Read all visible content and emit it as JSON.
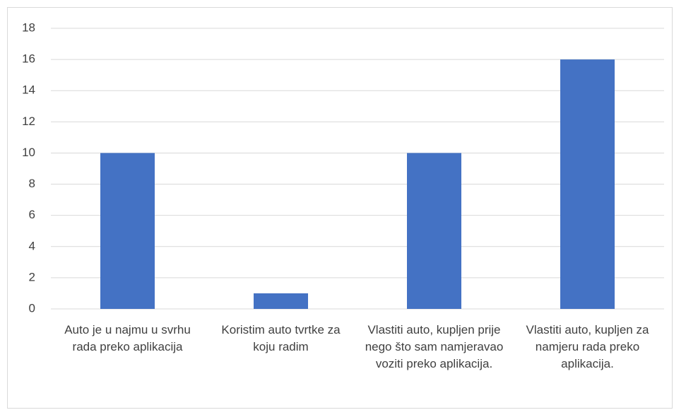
{
  "chart_data": {
    "type": "bar",
    "categories": [
      "Auto je u najmu u svrhu rada preko aplikacija",
      "Koristim auto tvrtke za koju radim",
      "Vlastiti auto, kupljen prije nego što sam namjeravao voziti preko aplikacija.",
      "Vlastiti auto, kupljen za namjeru rada preko aplikacija."
    ],
    "values": [
      10,
      1,
      10,
      16
    ],
    "color": "#4472c4",
    "ylim": [
      0,
      18
    ],
    "yticks": [
      0,
      2,
      4,
      6,
      8,
      10,
      12,
      14,
      16,
      18
    ],
    "grid": true
  }
}
